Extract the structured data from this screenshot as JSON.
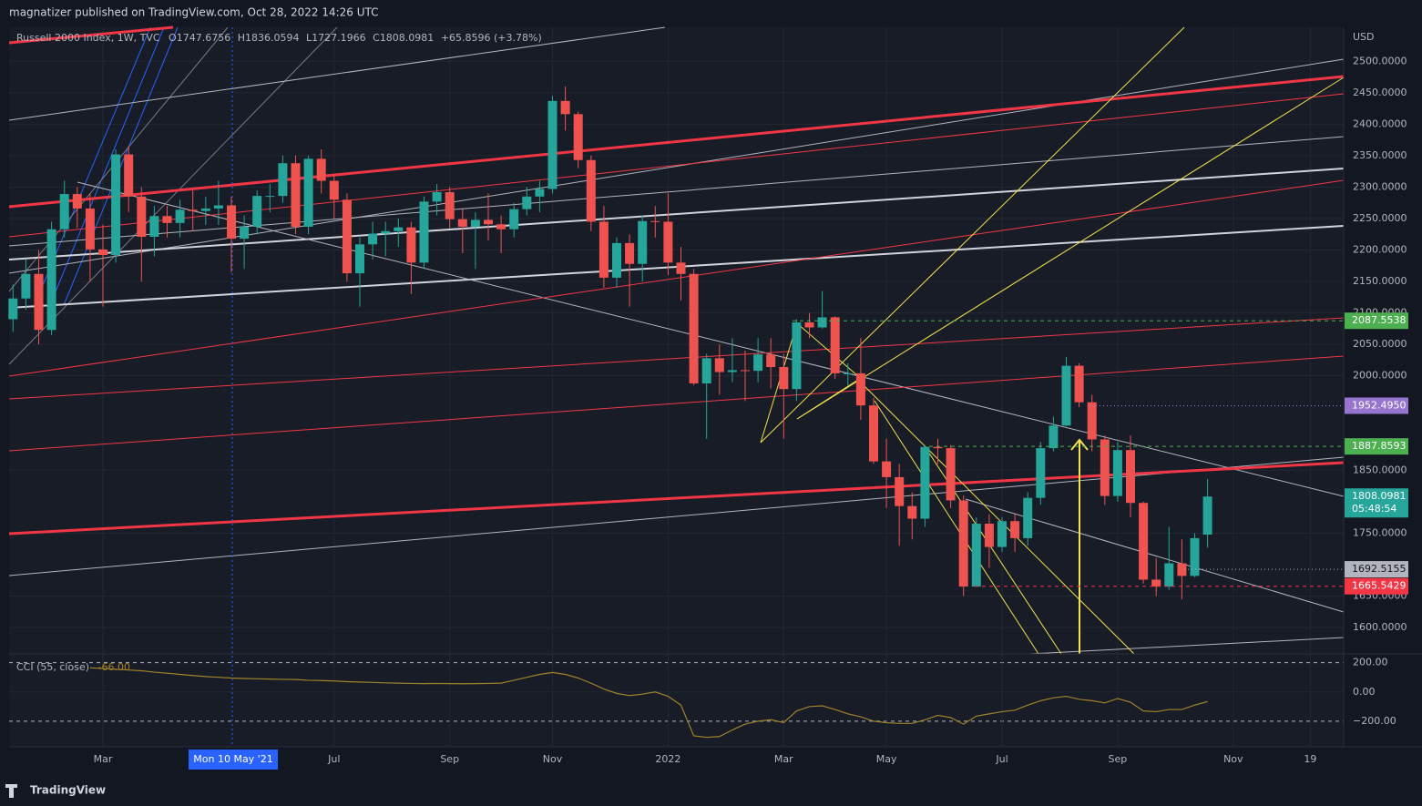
{
  "header": {
    "published": "magnatizer published on TradingView.com, Oct 28, 2022 14:26 UTC",
    "brand": "TradingView"
  },
  "chart_data": {
    "type": "candlestick",
    "currency": "USD",
    "legend": {
      "keys": [
        "O",
        "H",
        "L",
        "C"
      ],
      "change": "+65.8596 (+3.78%)"
    },
    "crosshair_label": "Mon 10 May '21",
    "categories": [
      null,
      null,
      null,
      null,
      null,
      null,
      null,
      "Mar",
      null,
      null,
      null,
      null,
      null,
      null,
      null,
      null,
      null,
      null,
      null,
      null,
      null,
      null,
      null,
      null,
      null,
      "Jul",
      null,
      null,
      null,
      null,
      null,
      null,
      null,
      null,
      "Sep",
      null,
      null,
      null,
      null,
      null,
      null,
      null,
      "Nov",
      null,
      null,
      null,
      null,
      null,
      null,
      null,
      null,
      "2022",
      null,
      null,
      null,
      null,
      null,
      null,
      null,
      null,
      "Mar",
      null,
      null,
      null,
      null,
      null,
      null,
      null,
      "May",
      null,
      null,
      null,
      null,
      null,
      null,
      null,
      null,
      "Jul",
      null,
      null,
      null,
      null,
      null,
      null,
      null,
      null,
      "Sep",
      null,
      null,
      null,
      null,
      null,
      null,
      null,
      null,
      "Nov",
      null,
      null,
      null,
      null,
      null,
      "19",
      null,
      null
    ],
    "series": [
      {
        "name": "Russell 2000 Index, 1W, TVC",
        "up_color": "#26a69a",
        "down_color": "#ef5350",
        "open": [
          2090,
          2123,
          2162,
          2073,
          2233,
          2289,
          2266,
          2201,
          2192,
          2352,
          2285,
          2221,
          2254,
          2243,
          2264,
          2262,
          2266,
          2271,
          2218,
          2237,
          2286,
          2286,
          2338,
          2237,
          2345,
          2310,
          2280,
          2163,
          2209,
          2226,
          2230,
          2236,
          2180,
          2277,
          2292,
          2249,
          2237,
          2248,
          2241,
          2233,
          2265,
          2285,
          2297,
          2437,
          2416,
          2343,
          2245,
          2156,
          2211,
          2178,
          2246,
          2245,
          2180,
          2162,
          1988,
          2028,
          2006,
          2009,
          2008,
          2034,
          2014,
          1979,
          2085,
          2077,
          2093,
          2004,
          2004,
          1953,
          1864,
          1839,
          1793,
          1773,
          1887,
          1885,
          1802,
          1665,
          1765,
          1728,
          1769,
          1742,
          1806,
          1885,
          1921,
          2016,
          1958,
          1899,
          1809,
          1882,
          1798,
          1676,
          1665,
          1702,
          1682,
          1747.6756,
          null,
          null,
          null,
          null,
          null,
          null,
          null,
          null,
          null,
          null
        ],
        "high": [
          2145,
          2185,
          2200,
          2245,
          2310,
          2300,
          2290,
          2240,
          2360,
          2365,
          2300,
          2270,
          2270,
          2280,
          2295,
          2285,
          2310,
          2285,
          2255,
          2295,
          2305,
          2350,
          2350,
          2350,
          2360,
          2320,
          2290,
          2220,
          2245,
          2245,
          2250,
          2245,
          2285,
          2305,
          2300,
          2265,
          2260,
          2290,
          2255,
          2275,
          2300,
          2310,
          2445,
          2460,
          2420,
          2350,
          2270,
          2220,
          2225,
          2255,
          2270,
          2290,
          2205,
          2170,
          2035,
          2050,
          2060,
          2040,
          2060,
          2060,
          2035,
          2090,
          2100,
          2135,
          2095,
          2020,
          2060,
          1965,
          1900,
          1860,
          1815,
          1890,
          1900,
          1890,
          1810,
          1775,
          1780,
          1775,
          1780,
          1815,
          1895,
          1935,
          2030,
          2020,
          1970,
          1905,
          1895,
          1905,
          1800,
          1710,
          1760,
          1740,
          1750,
          1836.0594,
          null,
          null,
          null,
          null,
          null,
          null,
          null,
          null,
          null,
          null
        ],
        "low": [
          2070,
          2105,
          2050,
          2065,
          2220,
          2235,
          2150,
          2110,
          2180,
          2260,
          2150,
          2190,
          2220,
          2220,
          2230,
          2240,
          2240,
          2165,
          2170,
          2225,
          2260,
          2275,
          2225,
          2225,
          2290,
          2250,
          2150,
          2110,
          2185,
          2190,
          2205,
          2130,
          2170,
          2255,
          2235,
          2195,
          2170,
          2215,
          2195,
          2220,
          2255,
          2260,
          2290,
          2390,
          2330,
          2230,
          2140,
          2140,
          2110,
          2150,
          2220,
          2160,
          2120,
          1985,
          1900,
          1970,
          1990,
          1960,
          1990,
          1980,
          1900,
          1960,
          2060,
          2075,
          1995,
          1985,
          1930,
          1860,
          1790,
          1730,
          1740,
          1760,
          1860,
          1790,
          1650,
          1665,
          1695,
          1720,
          1720,
          1730,
          1795,
          1880,
          1920,
          1950,
          1880,
          1795,
          1800,
          1775,
          1670,
          1650,
          1660,
          1645,
          1680,
          1727.1966,
          null,
          null,
          null,
          null,
          null,
          null,
          null,
          null,
          null,
          null
        ],
        "close": [
          2123,
          2162,
          2073,
          2233,
          2289,
          2266,
          2201,
          2192,
          2352,
          2285,
          2221,
          2254,
          2243,
          2264,
          2262,
          2266,
          2271,
          2218,
          2237,
          2286,
          2286,
          2338,
          2237,
          2345,
          2310,
          2280,
          2163,
          2209,
          2226,
          2230,
          2236,
          2180,
          2277,
          2292,
          2249,
          2237,
          2248,
          2241,
          2233,
          2265,
          2285,
          2297,
          2437,
          2416,
          2343,
          2245,
          2156,
          2211,
          2178,
          2246,
          2245,
          2180,
          2162,
          1988,
          2028,
          2006,
          2009,
          2008,
          2034,
          2014,
          1979,
          2085,
          2077,
          2093,
          2004,
          2004,
          1953,
          1864,
          1839,
          1793,
          1773,
          1887,
          1885,
          1802,
          1665,
          1765,
          1728,
          1769,
          1742,
          1806,
          1885,
          1921,
          2016,
          1958,
          1899,
          1809,
          1882,
          1798,
          1676,
          1665,
          1702,
          1682,
          1742,
          1808.0981,
          null,
          null,
          null,
          null,
          null,
          null,
          null,
          null,
          null,
          null
        ]
      },
      {
        "name": "CCI (55, close)",
        "axis": "y2",
        "color": "#a0822a",
        "legend_value": "-66.00",
        "values": [
          null,
          null,
          null,
          null,
          null,
          null,
          165,
          160,
          155,
          150,
          145,
          135,
          128,
          120,
          112,
          105,
          100,
          95,
          92,
          90,
          88,
          86,
          85,
          80,
          78,
          75,
          70,
          68,
          65,
          62,
          60,
          58,
          57,
          58,
          57,
          56,
          57,
          58,
          60,
          80,
          100,
          120,
          133,
          120,
          95,
          60,
          20,
          -10,
          -25,
          -15,
          0,
          -30,
          -90,
          -300,
          -310,
          -305,
          -260,
          -220,
          -200,
          -190,
          -210,
          -130,
          -100,
          -95,
          -120,
          -150,
          -170,
          -200,
          -210,
          -215,
          -215,
          -190,
          -160,
          -175,
          -220,
          -165,
          -150,
          -135,
          -125,
          -90,
          -60,
          -40,
          -30,
          -50,
          -60,
          -75,
          -45,
          -70,
          -130,
          -135,
          -120,
          -120,
          -90,
          -66,
          null,
          null,
          null,
          null,
          null,
          null,
          null,
          null,
          null,
          null
        ]
      }
    ],
    "countdown": "05:48:54",
    "price_labels": [
      {
        "value": 2087.5538,
        "label": "2087.5538",
        "color": "#4caf50",
        "line": "dash"
      },
      {
        "value": 1952.495,
        "label": "1952.4950",
        "color": "#9575cd",
        "line": "dot"
      },
      {
        "value": 1887.8593,
        "label": "1887.8593",
        "color": "#4caf50",
        "line": "dash"
      },
      {
        "value": 1692.5155,
        "label": "1692.5155",
        "color": "#b2b5be",
        "line": "dot"
      },
      {
        "value": 1665.5429,
        "label": "1665.5429",
        "color": "#f23645",
        "line": "dash"
      }
    ],
    "ylim": [
      1558,
      2554
    ],
    "yticks": [
      {
        "value": 1600,
        "label": "1600.0000"
      },
      {
        "value": 1650,
        "label": "1650.0000"
      },
      {
        "value": 1750,
        "label": "1750.0000"
      },
      {
        "value": 1850,
        "label": "1850.0000"
      },
      {
        "value": 2000,
        "label": "2000.0000"
      },
      {
        "value": 2050,
        "label": "2050.0000"
      },
      {
        "value": 2100,
        "label": "2100.0000"
      },
      {
        "value": 2150,
        "label": "2150.0000"
      },
      {
        "value": 2200,
        "label": "2200.0000"
      },
      {
        "value": 2250,
        "label": "2250.0000"
      },
      {
        "value": 2300,
        "label": "2300.0000"
      },
      {
        "value": 2350,
        "label": "2350.0000"
      },
      {
        "value": 2400,
        "label": "2400.0000"
      },
      {
        "value": 2450,
        "label": "2450.0000"
      },
      {
        "value": 2500,
        "label": "2500.0000"
      }
    ],
    "y2lim": [
      -375,
      260
    ],
    "y2ticks": [
      {
        "value": 200,
        "label": "200.00"
      },
      {
        "value": 0,
        "label": "0.00"
      },
      {
        "value": -200,
        "label": "−200.00"
      }
    ],
    "grid": true
  }
}
